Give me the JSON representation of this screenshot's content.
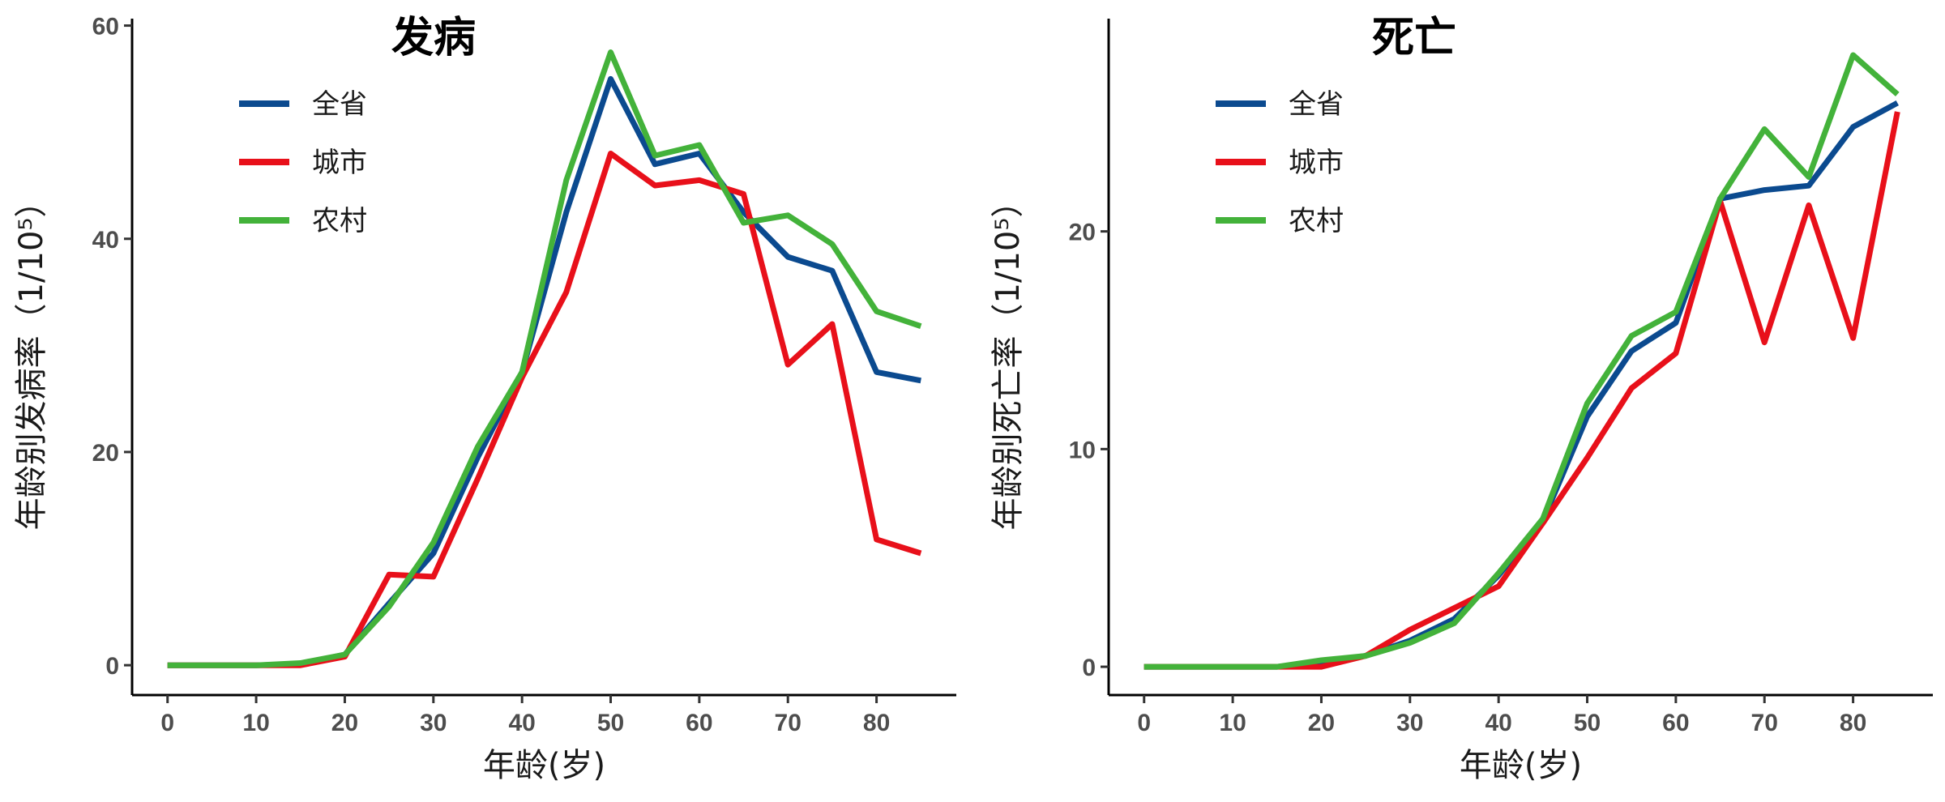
{
  "chart_data": [
    {
      "type": "line",
      "title": "发病",
      "xlabel": "年龄(岁)",
      "ylabel": "年龄别发病率（1/10⁵）",
      "x": [
        0,
        5,
        10,
        15,
        20,
        25,
        30,
        35,
        40,
        45,
        50,
        55,
        60,
        65,
        70,
        75,
        80,
        85
      ],
      "xlim": [
        -4,
        89
      ],
      "ylim": [
        -2.8,
        60.5
      ],
      "xticks": [
        0,
        10,
        20,
        30,
        40,
        50,
        60,
        70,
        80
      ],
      "yticks": [
        0,
        20,
        40,
        60
      ],
      "legend_position": "top-left",
      "grid": false,
      "series": [
        {
          "name": "全省",
          "color": "#0b4a8f",
          "values": [
            0,
            0,
            0,
            0.1,
            1.0,
            5.8,
            10.5,
            19.5,
            27.5,
            42.5,
            55.0,
            47.0,
            48.0,
            42.5,
            38.3,
            37.0,
            27.5,
            26.7
          ]
        },
        {
          "name": "城市",
          "color": "#e8101a",
          "values": [
            0,
            0,
            0,
            0,
            0.8,
            8.5,
            8.3,
            17.5,
            27.0,
            35.0,
            48.0,
            45.0,
            45.5,
            44.2,
            28.2,
            32.0,
            11.8,
            10.5
          ]
        },
        {
          "name": "农村",
          "color": "#43b23a",
          "values": [
            0,
            0,
            0,
            0.2,
            1.0,
            5.5,
            11.5,
            20.5,
            27.5,
            45.5,
            57.5,
            47.8,
            48.8,
            41.5,
            42.2,
            39.5,
            33.2,
            31.8
          ]
        }
      ]
    },
    {
      "type": "line",
      "title": "死亡",
      "xlabel": "年龄(岁)",
      "ylabel": "年龄别死亡率（1/10⁵）",
      "x": [
        0,
        5,
        10,
        15,
        20,
        25,
        30,
        35,
        40,
        45,
        50,
        55,
        60,
        65,
        70,
        75,
        80,
        85
      ],
      "xlim": [
        -4,
        89
      ],
      "ylim": [
        -1.3,
        29.7
      ],
      "xticks": [
        0,
        10,
        20,
        30,
        40,
        50,
        60,
        70,
        80
      ],
      "yticks": [
        0,
        10,
        20
      ],
      "legend_position": "top-left",
      "grid": false,
      "series": [
        {
          "name": "全省",
          "color": "#0b4a8f",
          "values": [
            0,
            0,
            0,
            0,
            0.2,
            0.5,
            1.2,
            2.2,
            4.2,
            6.7,
            11.5,
            14.5,
            15.8,
            21.5,
            21.9,
            22.1,
            24.8,
            25.9
          ]
        },
        {
          "name": "城市",
          "color": "#e8101a",
          "values": [
            0,
            0,
            0,
            0,
            0,
            0.5,
            1.7,
            2.7,
            3.7,
            6.6,
            9.6,
            12.8,
            14.4,
            21.4,
            14.9,
            21.2,
            15.1,
            25.5
          ]
        },
        {
          "name": "农村",
          "color": "#43b23a",
          "values": [
            0,
            0,
            0,
            0,
            0.3,
            0.5,
            1.1,
            2.0,
            4.3,
            6.8,
            12.1,
            15.2,
            16.3,
            21.5,
            24.7,
            22.5,
            28.1,
            26.3
          ]
        }
      ]
    }
  ]
}
